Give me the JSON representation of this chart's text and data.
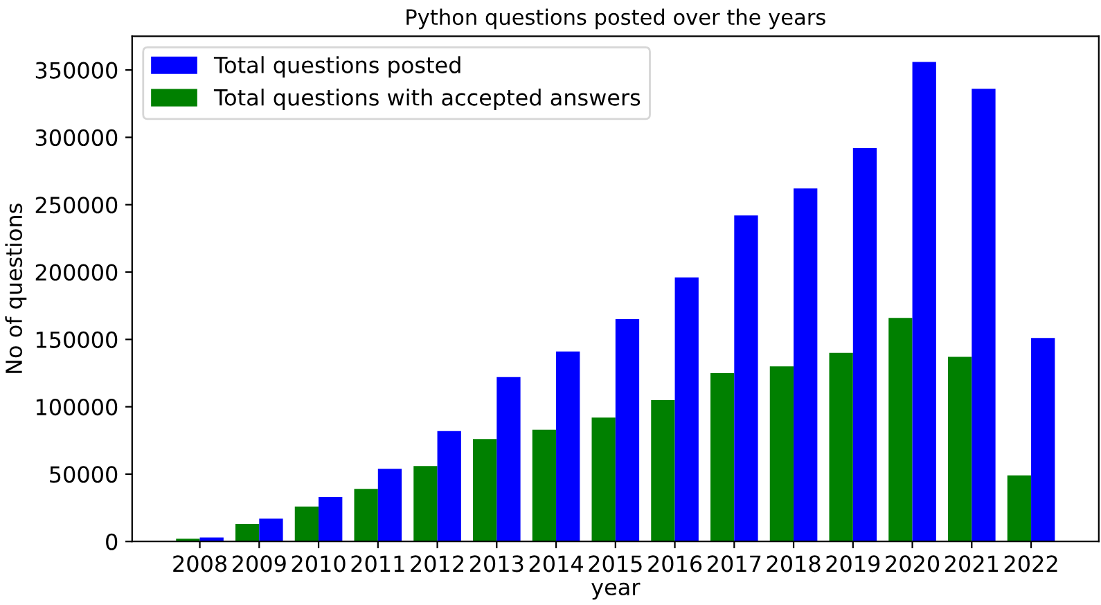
{
  "chart_data": {
    "type": "bar",
    "title": "Python questions posted over the years",
    "xlabel": "year",
    "ylabel": "No of questions",
    "categories": [
      "2008",
      "2009",
      "2010",
      "2011",
      "2012",
      "2013",
      "2014",
      "2015",
      "2016",
      "2017",
      "2018",
      "2019",
      "2020",
      "2021",
      "2022"
    ],
    "series": [
      {
        "name": "Total questions with accepted answers",
        "color": "#008000",
        "values": [
          2000,
          13000,
          26000,
          39000,
          56000,
          76000,
          83000,
          92000,
          105000,
          125000,
          130000,
          140000,
          166000,
          137000,
          49000
        ]
      },
      {
        "name": "Total questions posted",
        "color": "#0000ff",
        "values": [
          3000,
          17000,
          33000,
          54000,
          82000,
          122000,
          141000,
          165000,
          196000,
          242000,
          262000,
          292000,
          356000,
          336000,
          151000
        ]
      }
    ],
    "ylim": [
      0,
      375000
    ],
    "yticks": [
      0,
      50000,
      100000,
      150000,
      200000,
      250000,
      300000,
      350000
    ],
    "grid": false,
    "legend": "top left"
  }
}
